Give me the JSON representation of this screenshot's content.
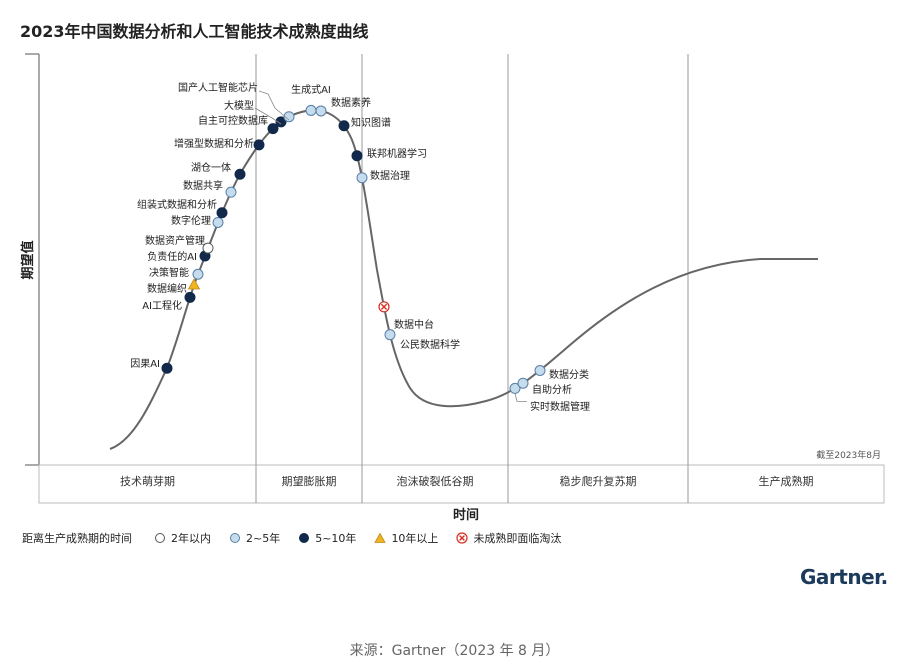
{
  "title": "2023年中国数据分析和人工智能技术成熟度曲线",
  "source": "来源：Gartner（2023 年 8 月）",
  "logo": "Gartner",
  "chart_data": {
    "type": "scatter",
    "title": "2023年中国数据分析和人工智能技术成熟度曲线",
    "xlabel": "时间",
    "ylabel": "期望值",
    "date_note": "截至2023年8月",
    "phases": [
      "技术萌芽期",
      "期望膨胀期",
      "泡沫破裂低谷期",
      "稳步爬升复苏期",
      "生产成熟期"
    ],
    "legend": {
      "title": "距离生产成熟期的时间",
      "items": [
        {
          "key": "lt2",
          "label": "2年以内",
          "fill": "#ffffff",
          "stroke": "#555555",
          "shape": "circle"
        },
        {
          "key": "y2to5",
          "label": "2~5年",
          "fill": "#c5dcef",
          "stroke": "#5a7fa3",
          "shape": "circle"
        },
        {
          "key": "y5to10",
          "label": "5~10年",
          "fill": "#13294b",
          "stroke": "#13294b",
          "shape": "circle"
        },
        {
          "key": "gt10",
          "label": "10年以上",
          "fill": "#f0b323",
          "stroke": "#c08a10",
          "shape": "triangle"
        },
        {
          "key": "obsolete",
          "label": "未成熟即面临淘汰",
          "fill": "#ffffff",
          "stroke": "#d62d20",
          "shape": "x"
        }
      ]
    },
    "points": [
      {
        "label": "因果AI",
        "cat": "y5to10"
      },
      {
        "label": "AI工程化",
        "cat": "y5to10"
      },
      {
        "label": "数据编织",
        "cat": "gt10"
      },
      {
        "label": "决策智能",
        "cat": "y2to5"
      },
      {
        "label": "负责任的AI",
        "cat": "y5to10"
      },
      {
        "label": "数据资产管理",
        "cat": "lt2"
      },
      {
        "label": "数字伦理",
        "cat": "y2to5"
      },
      {
        "label": "组装式数据和分析",
        "cat": "y5to10"
      },
      {
        "label": "数据共享",
        "cat": "y2to5"
      },
      {
        "label": "湖仓一体",
        "cat": "y5to10"
      },
      {
        "label": "增强型数据和分析",
        "cat": "y5to10"
      },
      {
        "label": "自主可控数据库",
        "cat": "y5to10"
      },
      {
        "label": "大模型",
        "cat": "y5to10"
      },
      {
        "label": "国产人工智能芯片",
        "cat": "y2to5"
      },
      {
        "label": "生成式AI",
        "cat": "y2to5"
      },
      {
        "label": "数据素养",
        "cat": "y2to5"
      },
      {
        "label": "知识图谱",
        "cat": "y5to10"
      },
      {
        "label": "联邦机器学习",
        "cat": "y5to10"
      },
      {
        "label": "数据治理",
        "cat": "y2to5"
      },
      {
        "label": "数据中台",
        "cat": "obsolete"
      },
      {
        "label": "公民数据科学",
        "cat": "y2to5"
      },
      {
        "label": "实时数据管理",
        "cat": "y2to5"
      },
      {
        "label": "自助分析",
        "cat": "y2to5"
      },
      {
        "label": "数据分类",
        "cat": "y2to5"
      }
    ]
  }
}
